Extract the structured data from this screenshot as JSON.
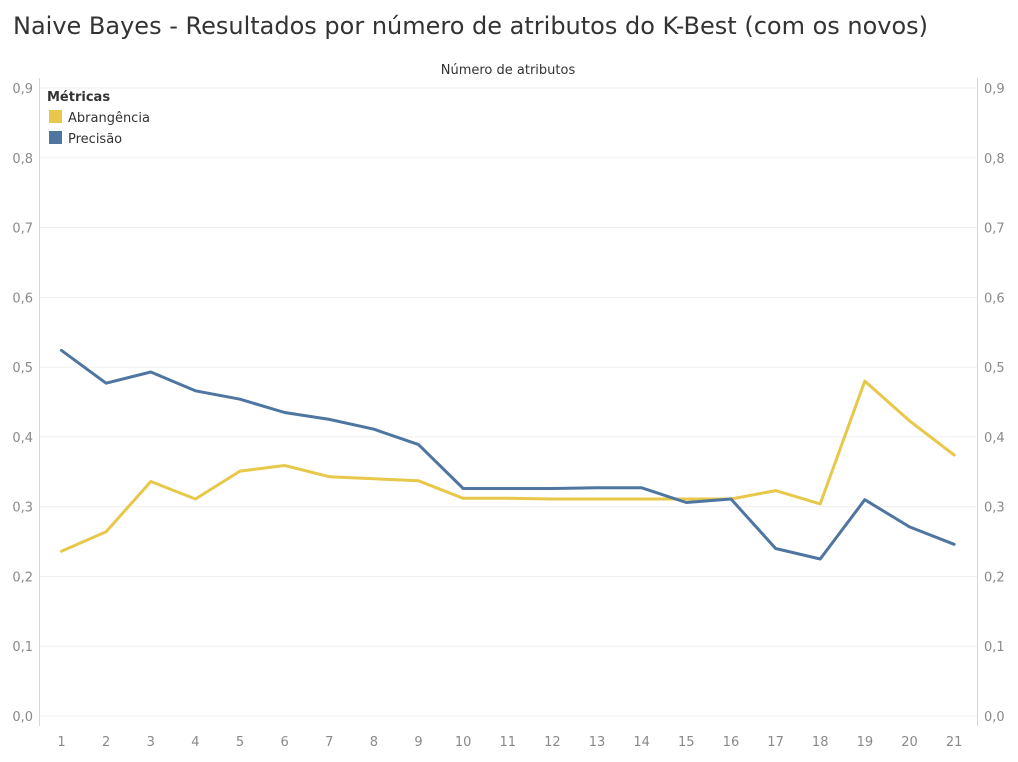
{
  "chart_data": {
    "type": "line",
    "title": "Naive Bayes - Resultados por número de atributos do K-Best (com os novos)",
    "xlabel": "Número de atributos",
    "ylabel": "",
    "x": [
      1,
      2,
      3,
      4,
      5,
      6,
      7,
      8,
      9,
      10,
      11,
      12,
      13,
      14,
      15,
      16,
      17,
      18,
      19,
      20,
      21
    ],
    "ylim": [
      0,
      0.9
    ],
    "yticks": [
      "0,0",
      "0,1",
      "0,2",
      "0,3",
      "0,4",
      "0,5",
      "0,6",
      "0,7",
      "0,8",
      "0,9"
    ],
    "grid": true,
    "legend": {
      "title": "Métricas",
      "position": "top-left"
    },
    "series": [
      {
        "name": "Abrangência",
        "color": "#e8c84a",
        "values": [
          0.236,
          0.264,
          0.336,
          0.311,
          0.351,
          0.359,
          0.343,
          0.34,
          0.337,
          0.312,
          0.312,
          0.311,
          0.311,
          0.311,
          0.311,
          0.311,
          0.323,
          0.304,
          0.48,
          0.423,
          0.374
        ]
      },
      {
        "name": "Precisão",
        "color": "#4e76a0",
        "values": [
          0.524,
          0.477,
          0.493,
          0.466,
          0.454,
          0.435,
          0.425,
          0.411,
          0.389,
          0.326,
          0.326,
          0.326,
          0.327,
          0.327,
          0.306,
          0.311,
          0.24,
          0.225,
          0.31,
          0.271,
          0.246
        ]
      }
    ]
  }
}
